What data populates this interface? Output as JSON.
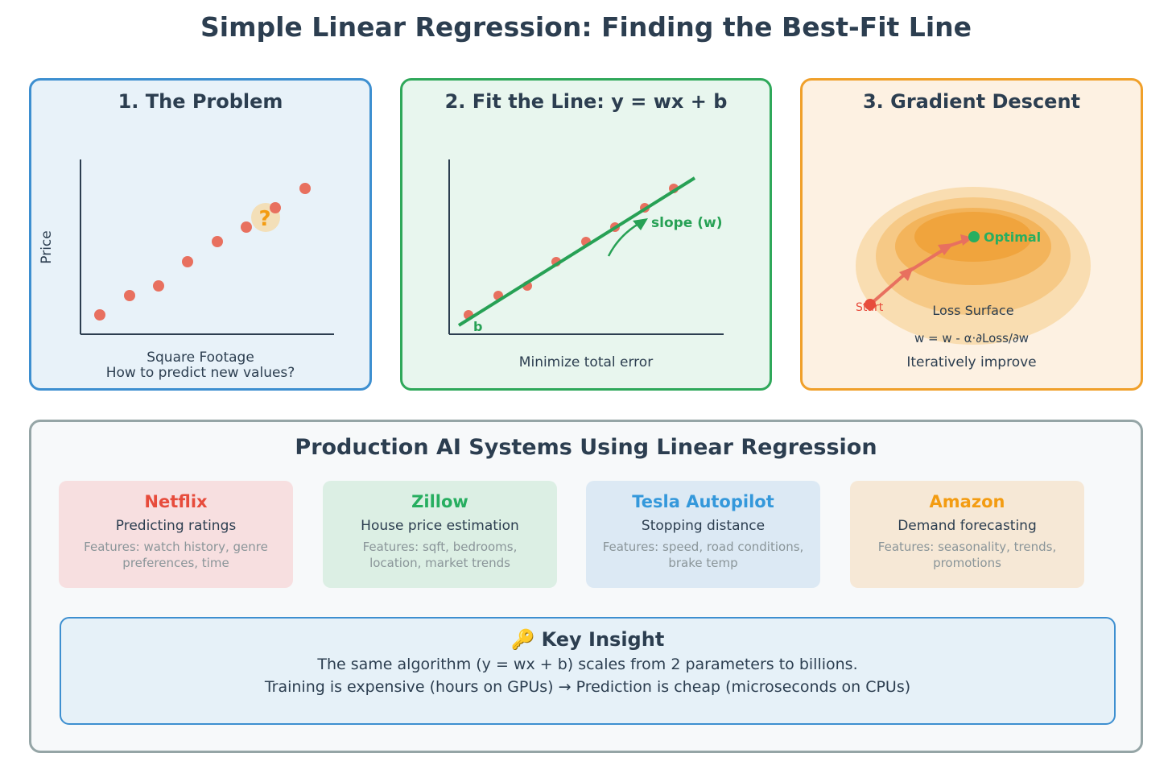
{
  "title": "Simple Linear Regression: Finding the Best-Fit Line",
  "panels": {
    "problem": {
      "title": "1. The Problem",
      "ylabel": "Price",
      "xlabel": "Square Footage",
      "caption": "How to predict new values?",
      "question": "?"
    },
    "fit": {
      "title": "2. Fit the Line: y = wx + b",
      "slope_label": "slope (w)",
      "intercept_label": "b",
      "caption": "Minimize total error"
    },
    "gradient": {
      "title": "3. Gradient Descent",
      "optimal_label": "Optimal",
      "start_label": "Start",
      "surface_label": "Loss Surface",
      "update_rule": "w = w - α·∂Loss/∂w",
      "caption": "Iteratively improve"
    }
  },
  "production": {
    "title": "Production AI Systems Using Linear Regression",
    "cards": [
      {
        "name": "Netflix",
        "desc": "Predicting ratings",
        "features": "Features: watch history, genre preferences, time",
        "color": "#e74c3c",
        "bg": "#f7dfe0"
      },
      {
        "name": "Zillow",
        "desc": "House price estimation",
        "features": "Features: sqft, bedrooms, location, market trends",
        "color": "#27ae60",
        "bg": "#dcefe4"
      },
      {
        "name": "Tesla Autopilot",
        "desc": "Stopping distance",
        "features": "Features: speed, road conditions, brake temp",
        "color": "#3498db",
        "bg": "#dce9f4"
      },
      {
        "name": "Amazon",
        "desc": "Demand forecasting",
        "features": "Features: seasonality, trends, promotions",
        "color": "#f39c12",
        "bg": "#f6e8d6"
      }
    ],
    "insight": {
      "icon": "key-icon",
      "title": "Key Insight",
      "line1": "The same algorithm (y = wx + b) scales from 2 parameters to billions.",
      "line2": "Training is expensive (hours on GPUs) → Prediction is cheap (microseconds on CPUs)"
    }
  },
  "colors": {
    "point": "#e8705f",
    "fit_line": "#27a155",
    "question": "#f39c12"
  }
}
